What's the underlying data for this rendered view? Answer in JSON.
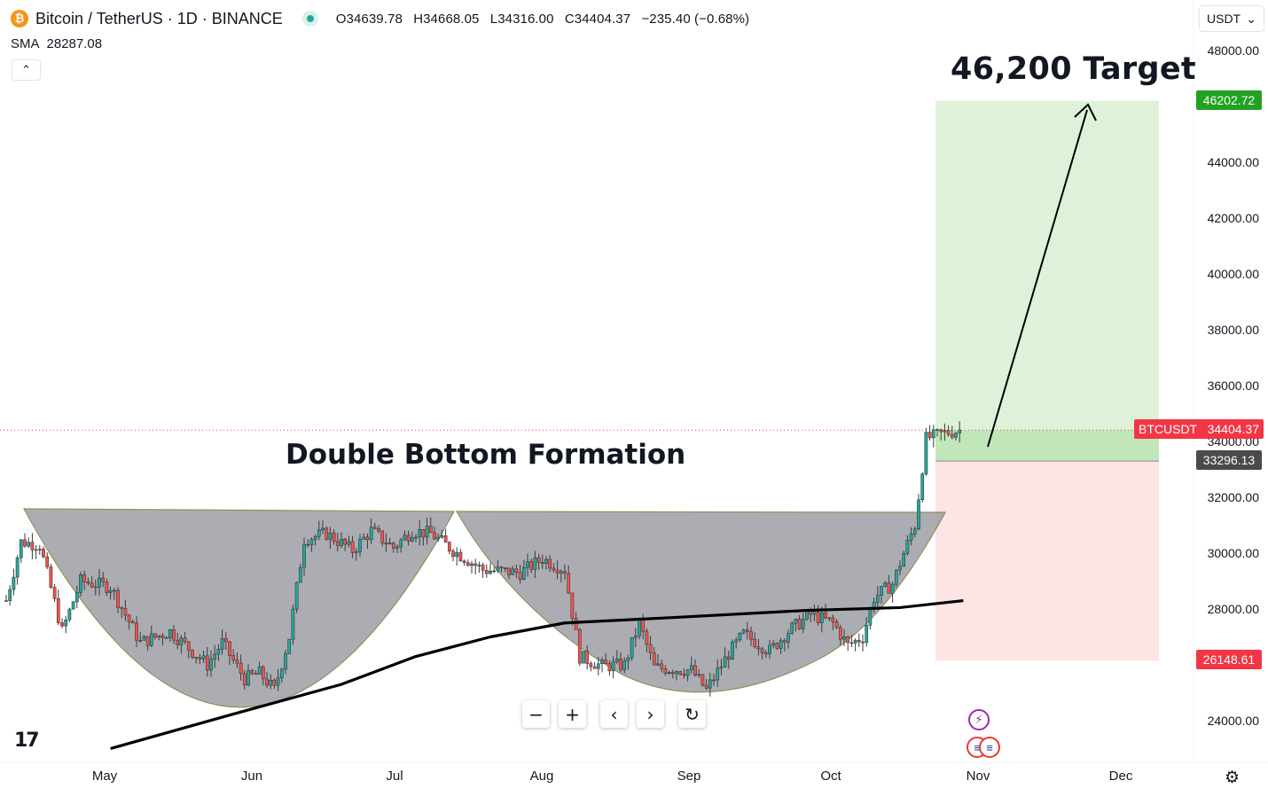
{
  "header": {
    "coin_glyph": "₿",
    "symbol": "Bitcoin / TetherUS · 1D · BINANCE",
    "ohlc": {
      "open": "O34639.78",
      "high": "H34668.05",
      "low": "L34316.00",
      "close": "C34404.37",
      "change": "−235.40 (−0.68%)"
    },
    "indicator": {
      "name": "SMA",
      "value": "28287.08"
    },
    "collapse_glyph": "⌃",
    "currency": "USDT",
    "currency_caret": "⌄"
  },
  "annotations": {
    "target": "46,200 Target",
    "pattern": "Double Bottom Formation"
  },
  "axis": {
    "y_ticks": [
      "48000.00",
      "44000.00",
      "42000.00",
      "40000.00",
      "38000.00",
      "36000.00",
      "34000.00",
      "32000.00",
      "30000.00",
      "28000.00",
      "24000.00"
    ],
    "x_ticks": [
      "May",
      "Jun",
      "Jul",
      "Aug",
      "Sep",
      "Oct",
      "Nov",
      "Dec"
    ]
  },
  "badges": {
    "target_price": "46202.72",
    "ticker_label": "BTCUSDT",
    "last_price": "34404.37",
    "entry_price": "33296.13",
    "stop_price": "26148.61"
  },
  "controls": {
    "zoom_out": "−",
    "zoom_in": "+",
    "scroll_left": "‹",
    "scroll_right": "›",
    "reset": "↻",
    "settings": "⚙"
  },
  "logo": "17",
  "colors": {
    "up": "#26a69a",
    "down": "#ef5350",
    "target_zone": "#d8f0d2",
    "stop_zone": "#fde2e2",
    "pattern_fill": "#9e9fa6",
    "target_badge": "#22a122",
    "last_badge": "#f23645",
    "entry_badge": "#4a4a4a",
    "sma": "#000000"
  },
  "chart_data": {
    "type": "candlestick",
    "symbol": "BTCUSDT",
    "interval": "1D",
    "y_axis_ticks": [
      24000,
      28000,
      30000,
      32000,
      34000,
      36000,
      38000,
      40000,
      42000,
      44000,
      48000
    ],
    "x_axis_months": [
      "May",
      "Jun",
      "Jul",
      "Aug",
      "Sep",
      "Oct",
      "Nov",
      "Dec"
    ],
    "last_price": 34404.37,
    "indicator": {
      "type": "SMA",
      "value": 28287.08
    },
    "position": {
      "entry": 33296.13,
      "target": 46202.72,
      "stop": 26148.61
    },
    "ohlc_last_bar": {
      "open": 34639.78,
      "high": 34668.05,
      "low": 34316.0,
      "close": 34404.37,
      "change": -235.4,
      "change_pct": -0.68
    },
    "neckline_price": 31400,
    "bottoms": [
      25000,
      25000
    ],
    "price_path_anchors": [
      {
        "day": 0,
        "price": 28300
      },
      {
        "day": 4,
        "price": 30400
      },
      {
        "day": 9,
        "price": 30300
      },
      {
        "day": 15,
        "price": 27200
      },
      {
        "day": 20,
        "price": 29000
      },
      {
        "day": 28,
        "price": 28800
      },
      {
        "day": 36,
        "price": 26800
      },
      {
        "day": 44,
        "price": 27200
      },
      {
        "day": 54,
        "price": 26000
      },
      {
        "day": 58,
        "price": 26800
      },
      {
        "day": 64,
        "price": 25500
      },
      {
        "day": 68,
        "price": 25700
      },
      {
        "day": 72,
        "price": 25100
      },
      {
        "day": 76,
        "price": 27000
      },
      {
        "day": 80,
        "price": 30500
      },
      {
        "day": 86,
        "price": 30700
      },
      {
        "day": 93,
        "price": 30100
      },
      {
        "day": 98,
        "price": 30800
      },
      {
        "day": 104,
        "price": 30200
      },
      {
        "day": 109,
        "price": 30800
      },
      {
        "day": 114,
        "price": 30700
      },
      {
        "day": 120,
        "price": 30100
      },
      {
        "day": 128,
        "price": 29400
      },
      {
        "day": 138,
        "price": 29300
      },
      {
        "day": 144,
        "price": 29800
      },
      {
        "day": 150,
        "price": 29400
      },
      {
        "day": 154,
        "price": 26300
      },
      {
        "day": 160,
        "price": 25950
      },
      {
        "day": 166,
        "price": 26000
      },
      {
        "day": 170,
        "price": 27500
      },
      {
        "day": 174,
        "price": 25900
      },
      {
        "day": 184,
        "price": 25800
      },
      {
        "day": 188,
        "price": 25100
      },
      {
        "day": 194,
        "price": 26400
      },
      {
        "day": 198,
        "price": 27100
      },
      {
        "day": 205,
        "price": 26500
      },
      {
        "day": 210,
        "price": 27200
      },
      {
        "day": 216,
        "price": 27800
      },
      {
        "day": 222,
        "price": 27500
      },
      {
        "day": 226,
        "price": 26700
      },
      {
        "day": 230,
        "price": 27000
      },
      {
        "day": 233,
        "price": 28400
      },
      {
        "day": 238,
        "price": 28900
      },
      {
        "day": 241,
        "price": 30000
      },
      {
        "day": 244,
        "price": 31000
      },
      {
        "day": 247,
        "price": 34100
      },
      {
        "day": 252,
        "price": 34300
      },
      {
        "day": 256,
        "price": 34400
      }
    ],
    "sma_anchors": [
      {
        "day": 28,
        "price": 23000
      },
      {
        "day": 60,
        "price": 24200
      },
      {
        "day": 90,
        "price": 25300
      },
      {
        "day": 110,
        "price": 26300
      },
      {
        "day": 130,
        "price": 27000
      },
      {
        "day": 150,
        "price": 27500
      },
      {
        "day": 180,
        "price": 27700
      },
      {
        "day": 215,
        "price": 27950
      },
      {
        "day": 240,
        "price": 28050
      },
      {
        "day": 257,
        "price": 28300
      }
    ]
  }
}
